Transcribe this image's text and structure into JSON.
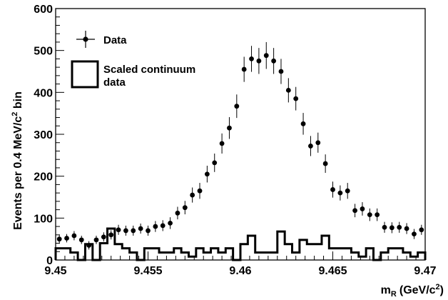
{
  "chart_data": {
    "type": "scatter",
    "title": "",
    "xlabel": {
      "main": "m",
      "sub": "R",
      "unit_pre": "(GeV/c",
      "unit_sup": "2",
      "unit_post": ")"
    },
    "ylabel": {
      "pre": "Events per 0.4 MeV/c",
      "sup": "2",
      "post": " bin"
    },
    "xlim": [
      9.45,
      9.47
    ],
    "ylim": [
      0,
      600
    ],
    "x_ticks": [
      9.45,
      9.455,
      9.46,
      9.465,
      9.47
    ],
    "x_tick_labels": [
      "9.45",
      "9.455",
      "9.46",
      "9.465",
      "9.47"
    ],
    "y_ticks": [
      0,
      100,
      200,
      300,
      400,
      500,
      600
    ],
    "y_tick_labels": [
      "0",
      "100",
      "200",
      "300",
      "400",
      "500",
      "600"
    ],
    "legend": {
      "position": "top-left",
      "data_label": "Data",
      "continuum_label_line1": "Scaled continuum",
      "continuum_label_line2": "data"
    },
    "series": [
      {
        "name": "Data",
        "kind": "points-with-errors",
        "x": [
          9.4502,
          9.4506,
          9.451,
          9.4514,
          9.4518,
          9.4522,
          9.4526,
          9.453,
          9.4534,
          9.4538,
          9.4542,
          9.4546,
          9.455,
          9.4554,
          9.4558,
          9.4562,
          9.4566,
          9.457,
          9.4574,
          9.4578,
          9.4582,
          9.4586,
          9.459,
          9.4594,
          9.4598,
          9.4602,
          9.4606,
          9.461,
          9.4614,
          9.4618,
          9.4622,
          9.4626,
          9.463,
          9.4634,
          9.4638,
          9.4642,
          9.4646,
          9.465,
          9.4654,
          9.4658,
          9.4662,
          9.4666,
          9.467,
          9.4674,
          9.4678,
          9.4682,
          9.4686,
          9.469,
          9.4694,
          9.4698
        ],
        "y": [
          50,
          52,
          58,
          48,
          35,
          48,
          55,
          60,
          72,
          70,
          70,
          75,
          70,
          80,
          82,
          88,
          112,
          125,
          155,
          165,
          205,
          232,
          278,
          315,
          367,
          455,
          480,
          475,
          488,
          475,
          450,
          405,
          385,
          325,
          272,
          280,
          230,
          168,
          160,
          165,
          118,
          122,
          108,
          108,
          78,
          77,
          78,
          75,
          62,
          72
        ],
        "err": [
          10,
          10,
          11,
          10,
          10,
          10,
          11,
          11,
          12,
          12,
          12,
          12,
          12,
          13,
          13,
          14,
          15,
          16,
          18,
          19,
          20,
          22,
          24,
          26,
          28,
          30,
          31,
          31,
          32,
          31,
          30,
          29,
          28,
          26,
          24,
          24,
          22,
          19,
          18,
          19,
          16,
          16,
          15,
          15,
          13,
          13,
          13,
          13,
          12,
          12
        ]
      },
      {
        "name": "Scaled continuum data",
        "kind": "step-histogram",
        "bin_edges": [
          9.45,
          9.4504,
          9.4508,
          9.4512,
          9.4516,
          9.452,
          9.4524,
          9.4528,
          9.4532,
          9.4536,
          9.454,
          9.4544,
          9.4548,
          9.4552,
          9.4556,
          9.456,
          9.4564,
          9.4568,
          9.4572,
          9.4576,
          9.458,
          9.4584,
          9.4588,
          9.4592,
          9.4596,
          9.46,
          9.4604,
          9.4608,
          9.4612,
          9.4616,
          9.462,
          9.4624,
          9.4628,
          9.4632,
          9.4636,
          9.464,
          9.4644,
          9.4648,
          9.4652,
          9.4656,
          9.466,
          9.4664,
          9.4668,
          9.4672,
          9.4676,
          9.468,
          9.4684,
          9.4688,
          9.4692,
          9.4696,
          9.47
        ],
        "y": [
          28,
          28,
          18,
          0,
          38,
          0,
          40,
          75,
          38,
          28,
          18,
          0,
          28,
          28,
          18,
          18,
          28,
          18,
          8,
          28,
          18,
          28,
          18,
          28,
          0,
          38,
          58,
          18,
          18,
          18,
          68,
          38,
          18,
          48,
          38,
          38,
          58,
          28,
          28,
          28,
          18,
          8,
          28,
          0,
          18,
          28,
          28,
          18,
          8,
          18
        ]
      }
    ],
    "grid": false
  }
}
